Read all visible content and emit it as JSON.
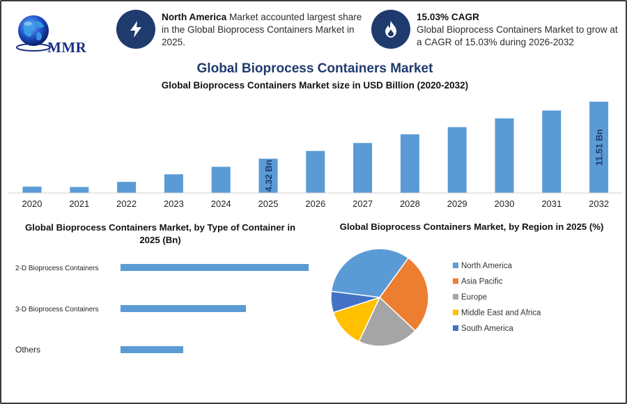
{
  "header": {
    "logo_text": "MMR",
    "info1": {
      "icon": "lightning-icon",
      "bold": "North America",
      "text": " Market accounted largest share in the Global Bioprocess Containers Market in 2025."
    },
    "info2": {
      "icon": "flame-icon",
      "title": "15.03% CAGR",
      "text": "Global Bioprocess Containers Market to grow at a CAGR of 15.03% during 2026-2032"
    }
  },
  "main_title": "Global Bioprocess Containers Market",
  "colors": {
    "bar": "#5b9bd5",
    "navy": "#1f3b6e",
    "north_america": "#5b9bd5",
    "asia_pacific": "#ed7d31",
    "europe": "#a5a5a5",
    "middle_east_africa": "#ffc000",
    "south_america": "#4472c4"
  },
  "chart_data": [
    {
      "type": "bar",
      "title": "Global Bioprocess Containers Market size in USD Billion (2020-2032)",
      "categories": [
        "2020",
        "2021",
        "2022",
        "2023",
        "2024",
        "2025",
        "2026",
        "2027",
        "2028",
        "2029",
        "2030",
        "2031",
        "2032"
      ],
      "values": [
        0.8,
        0.75,
        1.4,
        2.35,
        3.3,
        4.32,
        5.3,
        6.3,
        7.4,
        8.3,
        9.4,
        10.4,
        11.51
      ],
      "data_labels": [
        {
          "index": 5,
          "text": "4.32 Bn"
        },
        {
          "index": 12,
          "text": "11.51 Bn"
        }
      ],
      "ylim": [
        0,
        11.51
      ],
      "grid": false
    },
    {
      "type": "bar",
      "orientation": "horizontal",
      "title": "Global Bioprocess Containers Market, by Type of Container in 2025 (Bn)",
      "categories": [
        "2-D Bioprocess Containers",
        "3-D Bioprocess Containers",
        "Others"
      ],
      "values": [
        2.7,
        1.8,
        0.9
      ],
      "xlim": [
        0,
        2.7
      ],
      "grid": false
    },
    {
      "type": "pie",
      "title": "Global Bioprocess Containers Market, by Region in 2025 (%)",
      "categories": [
        "North America",
        "Asia Pacific",
        "Europe",
        "Middle East and Africa",
        "South America"
      ],
      "values": [
        33,
        27,
        20,
        13,
        7
      ],
      "legend_position": "right"
    }
  ]
}
